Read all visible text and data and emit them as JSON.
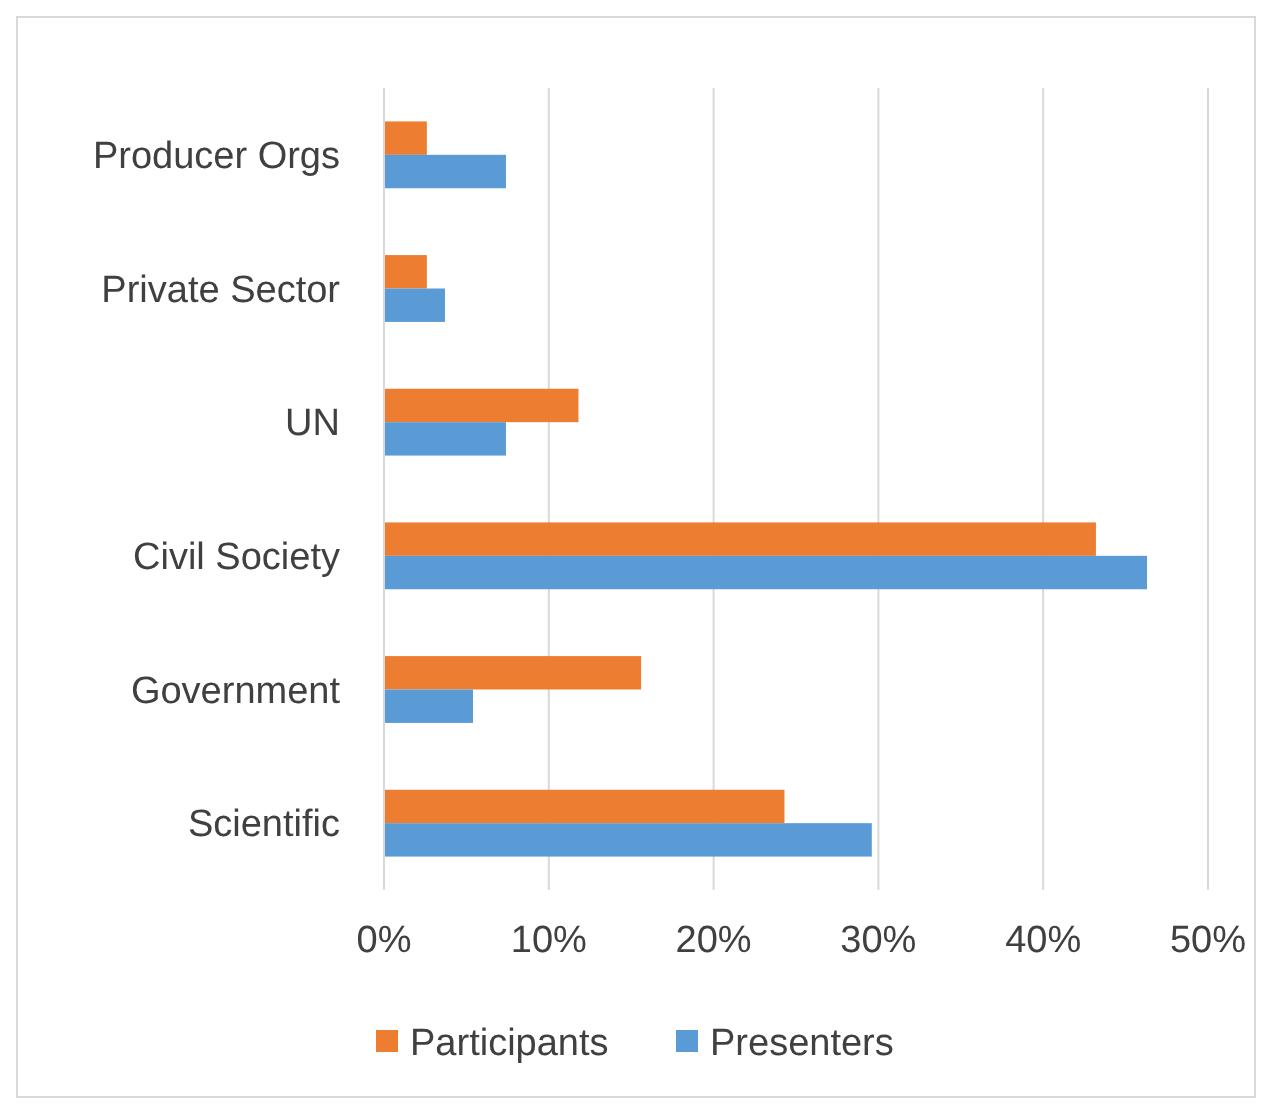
{
  "chart_data": {
    "type": "bar",
    "orientation": "horizontal",
    "categories": [
      "Producer Orgs",
      "Private Sector",
      "UN",
      "Civil Society",
      "Government",
      "Scientific"
    ],
    "series": [
      {
        "name": "Participants",
        "color": "#ed7d31",
        "values": [
          2.6,
          2.6,
          11.8,
          43.2,
          15.6,
          24.3
        ]
      },
      {
        "name": "Presenters",
        "color": "#5b9bd5",
        "values": [
          7.4,
          3.7,
          7.4,
          46.3,
          5.4,
          29.6
        ]
      }
    ],
    "xlim": [
      0,
      50
    ],
    "xticks": [
      {
        "value": 0,
        "label": "0%"
      },
      {
        "value": 10,
        "label": "10%"
      },
      {
        "value": 20,
        "label": "20%"
      },
      {
        "value": 30,
        "label": "30%"
      },
      {
        "value": 40,
        "label": "40%"
      },
      {
        "value": 50,
        "label": "50%"
      }
    ],
    "grid": "x",
    "legend": "bottom"
  }
}
